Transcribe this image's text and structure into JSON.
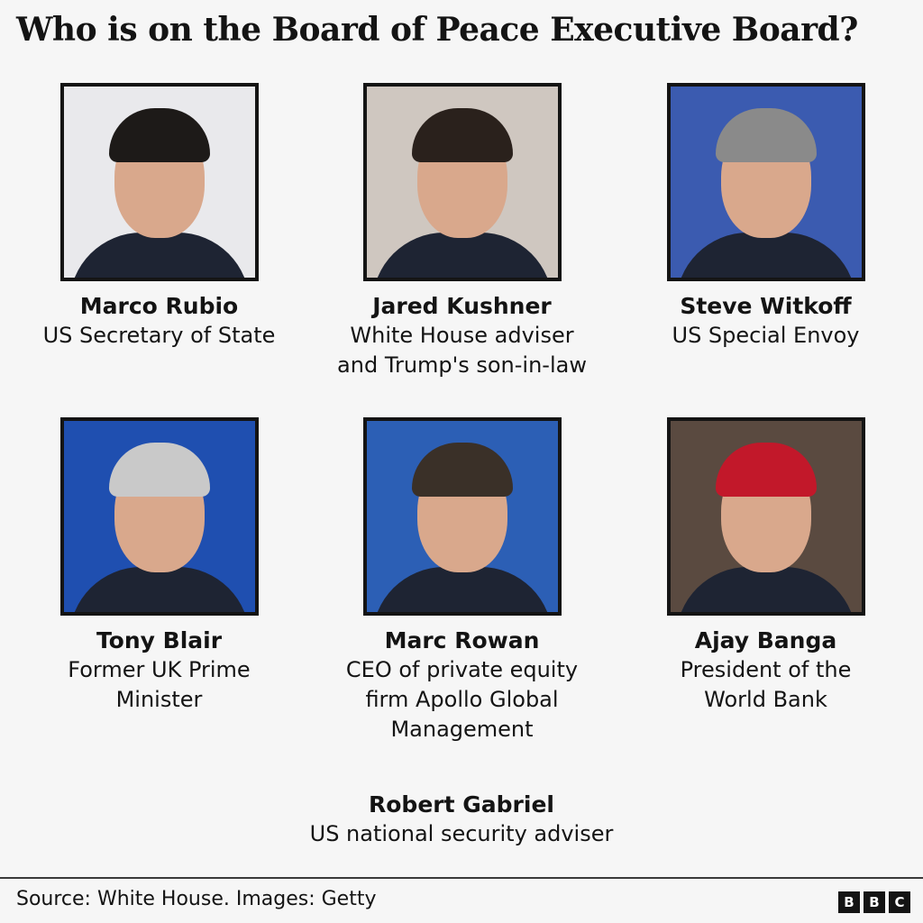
{
  "title": "Who is on the Board of Peace Executive Board?",
  "members": [
    {
      "name": "Marco Rubio",
      "role": [
        "US Secretary of State"
      ],
      "bg": "#e9e9ec",
      "hair": "#1d1a18"
    },
    {
      "name": "Jared Kushner",
      "role": [
        "White House adviser",
        "and Trump's son-in-law"
      ],
      "bg": "#cfc7c0",
      "hair": "#2a211c"
    },
    {
      "name": "Steve Witkoff",
      "role": [
        "US Special Envoy"
      ],
      "bg": "#3b5bb0",
      "hair": "#8a8a8a"
    },
    {
      "name": "Tony Blair",
      "role": [
        "Former UK Prime",
        "Minister"
      ],
      "bg": "#1f4fb0",
      "hair": "#c9c9c9"
    },
    {
      "name": "Marc Rowan",
      "role": [
        "CEO of private equity",
        "firm Apollo Global",
        "Management"
      ],
      "bg": "#2c5fb5",
      "hair": "#3a3028"
    },
    {
      "name": "Ajay Banga",
      "role": [
        "President of the",
        "World Bank"
      ],
      "bg": "#5a4a40",
      "hair": "#c2182a"
    },
    {
      "name": "Robert Gabriel",
      "role": [
        "US national security adviser"
      ]
    }
  ],
  "footer": {
    "source": "Source: White House. Images: Getty",
    "logo": [
      "B",
      "B",
      "C"
    ]
  }
}
